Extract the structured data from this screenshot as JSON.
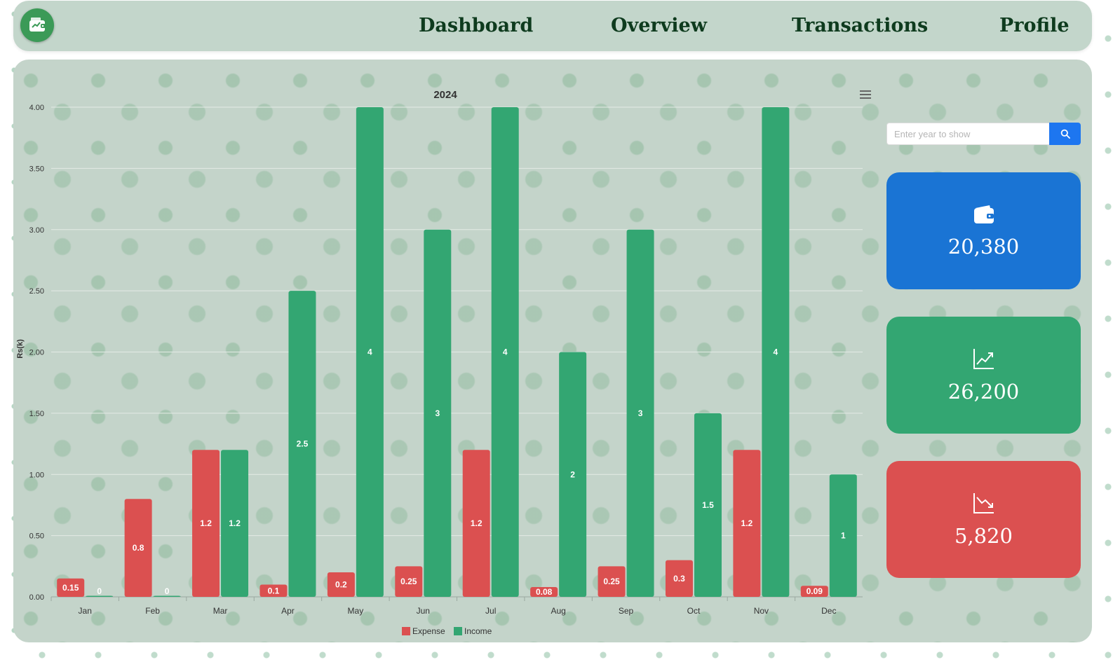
{
  "nav": {
    "links": [
      "Dashboard",
      "Overview",
      "Transactions",
      "Profile"
    ]
  },
  "search": {
    "placeholder": "Enter year to show",
    "value": ""
  },
  "cards": [
    {
      "value": "20,380",
      "color": "#1a74d4",
      "icon": "wallet-icon"
    },
    {
      "value": "26,200",
      "color": "#33a672",
      "icon": "trending-up-icon"
    },
    {
      "value": "5,820",
      "color": "#db5050",
      "icon": "trending-down-icon"
    }
  ],
  "colors": {
    "expense": "#db5050",
    "income": "#33a672",
    "navbar_bg": "#c3d6cb",
    "panel_bg": "#c4d4ca"
  },
  "chart_data": {
    "type": "bar",
    "title": "2024",
    "ylabel": "Rs(k)",
    "xlabel": "",
    "categories": [
      "Jan",
      "Feb",
      "Mar",
      "Apr",
      "May",
      "Jun",
      "Jul",
      "Aug",
      "Sep",
      "Oct",
      "Nov",
      "Dec"
    ],
    "ylim": [
      0,
      4
    ],
    "yticks": [
      "0.00",
      "0.50",
      "1.00",
      "1.50",
      "2.00",
      "2.50",
      "3.00",
      "3.50",
      "4.00"
    ],
    "grid": true,
    "legend_position": "bottom-center",
    "series": [
      {
        "name": "Expense",
        "values": [
          0.15,
          0.8,
          1.2,
          0.1,
          0.2,
          0.25,
          1.2,
          0.08,
          0.25,
          0.3,
          1.2,
          0.09
        ]
      },
      {
        "name": "Income",
        "values": [
          0,
          0,
          1.2,
          2.5,
          4,
          3,
          4,
          2,
          3,
          1.5,
          4,
          1
        ]
      }
    ]
  }
}
